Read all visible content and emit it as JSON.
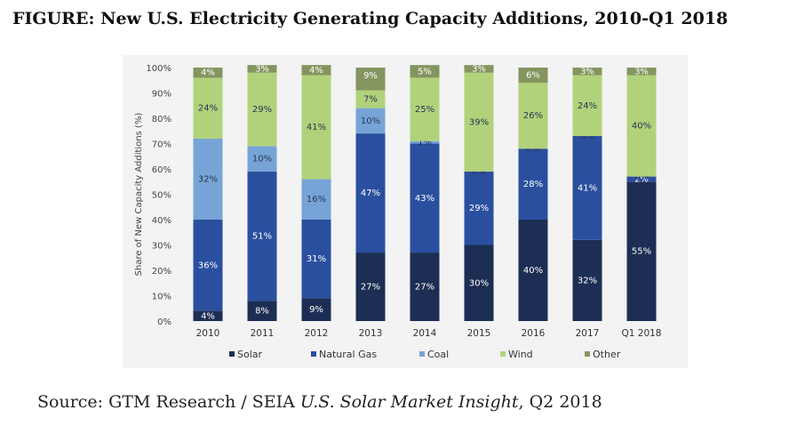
{
  "figure_title": "FIGURE: New U.S. Electricity Generating Capacity Additions, 2010-Q1 2018",
  "source": {
    "prefix": "Source: GTM Research / SEIA ",
    "italic": "U.S. Solar Market Insight",
    "suffix": ", Q2 2018"
  },
  "colors": {
    "Solar": "#1c2e53",
    "Natural Gas": "#2b4f9f",
    "Coal": "#77a4d7",
    "Wind": "#b1d27b",
    "Other": "#849560"
  },
  "chart_data": {
    "type": "bar",
    "stacked": true,
    "title": "",
    "ylabel": "Share of New Capacity Additions (%)",
    "xlabel": "",
    "ylim": [
      0,
      100
    ],
    "yticks": [
      "0%",
      "10%",
      "20%",
      "30%",
      "40%",
      "50%",
      "60%",
      "70%",
      "80%",
      "90%",
      "100%"
    ],
    "categories": [
      "2010",
      "2011",
      "2012",
      "2013",
      "2014",
      "2015",
      "2016",
      "2017",
      "Q1 2018"
    ],
    "legend_position": "bottom",
    "series": [
      {
        "name": "Solar",
        "values": [
          4,
          8,
          9,
          27,
          27,
          30,
          40,
          32,
          55
        ],
        "labels": [
          "4%",
          "8%",
          "9%",
          "27%",
          "27%",
          "30%",
          "40%",
          "32%",
          "55%"
        ]
      },
      {
        "name": "Natural Gas",
        "values": [
          36,
          51,
          31,
          47,
          43,
          29,
          28,
          41,
          2
        ],
        "labels": [
          "36%",
          "51%",
          "31%",
          "47%",
          "43%",
          "29%",
          "28%",
          "41%",
          "2%"
        ]
      },
      {
        "name": "Coal",
        "values": [
          32,
          10,
          16,
          10,
          1,
          0,
          0,
          0,
          0
        ],
        "labels": [
          "32%",
          "10%",
          "16%",
          "10%",
          "1%",
          "0%",
          "0%",
          "0%",
          "0%"
        ]
      },
      {
        "name": "Wind",
        "values": [
          24,
          29,
          41,
          7,
          25,
          39,
          26,
          24,
          40
        ],
        "labels": [
          "24%",
          "29%",
          "41%",
          "7%",
          "25%",
          "39%",
          "26%",
          "24%",
          "40%"
        ]
      },
      {
        "name": "Other",
        "values": [
          4,
          3,
          4,
          9,
          5,
          3,
          6,
          3,
          3
        ],
        "labels": [
          "4%",
          "3%",
          "4%",
          "9%",
          "5%",
          "3%",
          "6%",
          "3%",
          "3%"
        ]
      }
    ]
  }
}
